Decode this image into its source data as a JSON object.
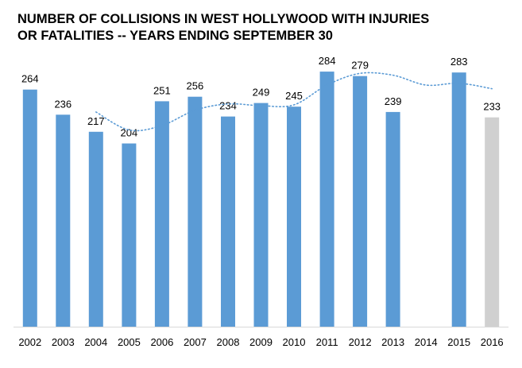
{
  "chart_data": {
    "type": "bar",
    "title_lines": [
      "NUMBER OF COLLISIONS IN WEST HOLLYWOOD WITH INJURIES",
      "OR FATALITIES -- YEARS ENDING SEPTEMBER 30"
    ],
    "categories": [
      "2002",
      "2003",
      "2004",
      "2005",
      "2006",
      "2007",
      "2008",
      "2009",
      "2010",
      "2011",
      "2012",
      "2013",
      "2014",
      "2015",
      "2016"
    ],
    "values": [
      264,
      236,
      217,
      204,
      251,
      256,
      234,
      249,
      245,
      284,
      279,
      239,
      null,
      283,
      233
    ],
    "data_labels": [
      "264",
      "236",
      "217",
      "204",
      "251",
      "256",
      "234",
      "249",
      "245",
      "284",
      "279",
      "239",
      "",
      "283",
      "233"
    ],
    "bar_colors": [
      "#5b9bd5",
      "#5b9bd5",
      "#5b9bd5",
      "#5b9bd5",
      "#5b9bd5",
      "#5b9bd5",
      "#5b9bd5",
      "#5b9bd5",
      "#5b9bd5",
      "#5b9bd5",
      "#5b9bd5",
      "#5b9bd5",
      "#5b9bd5",
      "#5b9bd5",
      "#d0d0d0"
    ],
    "trendline": {
      "style": "dotted",
      "color": "#5b9bd5",
      "x": [
        "2004",
        "2005",
        "2006",
        "2007",
        "2008",
        "2009",
        "2010",
        "2011",
        "2012",
        "2013",
        "2014",
        "2015",
        "2016"
      ],
      "values": [
        239,
        219,
        224,
        241,
        248,
        246,
        247,
        269,
        282,
        280,
        269,
        271,
        265
      ]
    },
    "ylim": [
      0,
      300
    ],
    "xlabel": "",
    "ylabel": "",
    "grid": false,
    "legend": "none"
  }
}
